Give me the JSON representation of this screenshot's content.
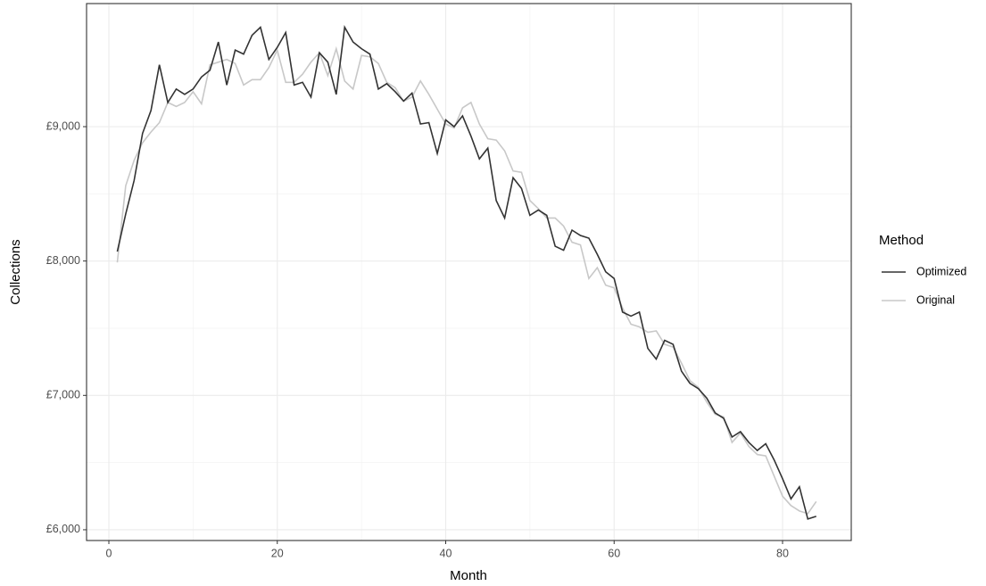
{
  "chart_data": {
    "type": "line",
    "x_label": "Month",
    "y_label": "Collections",
    "legend_title": "Method",
    "x": [
      1,
      2,
      3,
      4,
      5,
      6,
      7,
      8,
      9,
      10,
      11,
      12,
      13,
      14,
      15,
      16,
      17,
      18,
      19,
      20,
      21,
      22,
      23,
      24,
      25,
      26,
      27,
      28,
      29,
      30,
      31,
      32,
      33,
      34,
      35,
      36,
      37,
      38,
      39,
      40,
      41,
      42,
      43,
      44,
      45,
      46,
      47,
      48,
      49,
      50,
      51,
      52,
      53,
      54,
      55,
      56,
      57,
      58,
      59,
      60,
      61,
      62,
      63,
      64,
      65,
      66,
      67,
      68,
      69,
      70,
      71,
      72,
      73,
      74,
      75,
      76,
      77,
      78,
      79,
      80,
      81,
      82,
      83,
      84
    ],
    "series": [
      {
        "name": "Optimized",
        "color": "#333333",
        "values": [
          8070,
          8350,
          8600,
          8950,
          9120,
          9460,
          9180,
          9280,
          9240,
          9280,
          9370,
          9420,
          9630,
          9310,
          9570,
          9540,
          9680,
          9740,
          9500,
          9590,
          9700,
          9310,
          9330,
          9220,
          9550,
          9480,
          9240,
          9740,
          9630,
          9580,
          9540,
          9280,
          9320,
          9260,
          9190,
          9250,
          9020,
          9030,
          8800,
          9050,
          9000,
          9080,
          8930,
          8760,
          8840,
          8450,
          8320,
          8620,
          8540,
          8340,
          8380,
          8340,
          8110,
          8080,
          8230,
          8190,
          8170,
          8050,
          7920,
          7870,
          7620,
          7590,
          7620,
          7350,
          7270,
          7410,
          7380,
          7180,
          7090,
          7050,
          6980,
          6870,
          6830,
          6690,
          6730,
          6650,
          6590,
          6640,
          6520,
          6380,
          6230,
          6320,
          6080,
          6100
        ]
      },
      {
        "name": "Original",
        "color": "#c8c8c8",
        "values": [
          7990,
          8560,
          8750,
          8880,
          8960,
          9030,
          9180,
          9150,
          9180,
          9260,
          9170,
          9460,
          9480,
          9500,
          9470,
          9310,
          9350,
          9350,
          9440,
          9570,
          9330,
          9330,
          9390,
          9480,
          9550,
          9380,
          9580,
          9340,
          9280,
          9530,
          9520,
          9470,
          9330,
          9290,
          9190,
          9220,
          9340,
          9240,
          9130,
          9020,
          8990,
          9140,
          9180,
          9020,
          8910,
          8900,
          8820,
          8670,
          8660,
          8450,
          8390,
          8320,
          8320,
          8260,
          8140,
          8120,
          7870,
          7950,
          7820,
          7800,
          7650,
          7530,
          7510,
          7470,
          7480,
          7380,
          7360,
          7240,
          7110,
          7060,
          6950,
          6860,
          6840,
          6650,
          6720,
          6620,
          6560,
          6550,
          6400,
          6250,
          6180,
          6140,
          6120,
          6210
        ]
      }
    ],
    "xlim": [
      -2.65,
      88.16
    ],
    "xticks": [
      0,
      20,
      40,
      60,
      80
    ],
    "ylim": [
      5920,
      9916
    ],
    "yticks": [
      {
        "value": 6000,
        "label": "£6,000"
      },
      {
        "value": 7000,
        "label": "£7,000"
      },
      {
        "value": 8000,
        "label": "£8,000"
      },
      {
        "value": 9000,
        "label": "£9,000"
      }
    ],
    "grid": true,
    "legend_position": "right"
  }
}
